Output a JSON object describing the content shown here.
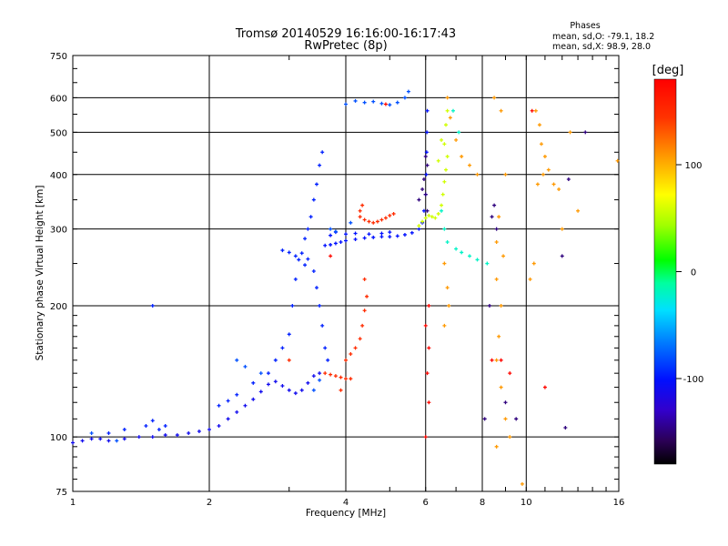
{
  "chart_data": {
    "type": "scatter",
    "title": "Tromsø 20140529 16:16:00-16:17:43",
    "subtitle": "RwPretec (8p)",
    "stats": {
      "heading": "Phases",
      "line_o": "mean, sd,O: -79.1, 18.2",
      "line_x": "mean, sd,X:  98.9, 28.0"
    },
    "xlabel": "Frequency [MHz]",
    "ylabel": "Stationary phase Virtual Height [km]",
    "x_scale": "log",
    "y_scale": "log",
    "xlim": [
      1,
      16
    ],
    "ylim": [
      75,
      750
    ],
    "x_ticks": [
      {
        "v": 1,
        "label": "1"
      },
      {
        "v": 2,
        "label": "2"
      },
      {
        "v": 4,
        "label": "4"
      },
      {
        "v": 6,
        "label": "6"
      },
      {
        "v": 8,
        "label": "8"
      },
      {
        "v": 10,
        "label": "10"
      },
      {
        "v": 16,
        "label": "16"
      }
    ],
    "y_ticks": [
      {
        "v": 75,
        "label": "75"
      },
      {
        "v": 100,
        "label": "100"
      },
      {
        "v": 200,
        "label": "200"
      },
      {
        "v": 300,
        "label": "300"
      },
      {
        "v": 400,
        "label": "400"
      },
      {
        "v": 500,
        "label": "500"
      },
      {
        "v": 600,
        "label": "600"
      },
      {
        "v": 750,
        "label": "750"
      }
    ],
    "grid": true,
    "colorbar": {
      "unit": "[deg]",
      "range": [
        -180,
        180
      ],
      "ticks": [
        {
          "v": 100,
          "label": "100"
        },
        {
          "v": 0,
          "label": "0"
        },
        {
          "v": -100,
          "label": "-100"
        }
      ]
    },
    "series": [
      {
        "phase": -110,
        "points": [
          [
            1.0,
            97
          ],
          [
            1.05,
            98
          ],
          [
            1.1,
            99
          ],
          [
            1.15,
            99
          ],
          [
            1.2,
            98
          ],
          [
            1.3,
            99
          ],
          [
            1.4,
            100
          ],
          [
            1.5,
            100
          ],
          [
            1.6,
            101
          ],
          [
            1.7,
            101
          ],
          [
            1.8,
            102
          ],
          [
            1.9,
            103
          ],
          [
            2.0,
            104
          ],
          [
            2.1,
            106
          ],
          [
            2.2,
            110
          ],
          [
            2.3,
            114
          ],
          [
            2.4,
            118
          ],
          [
            2.5,
            122
          ],
          [
            2.6,
            127
          ],
          [
            2.7,
            132
          ],
          [
            2.8,
            134
          ],
          [
            2.9,
            131
          ],
          [
            3.0,
            128
          ],
          [
            3.1,
            126
          ],
          [
            3.2,
            128
          ],
          [
            3.3,
            133
          ],
          [
            3.4,
            138
          ],
          [
            3.5,
            140
          ]
        ]
      },
      {
        "phase": -95,
        "points": [
          [
            1.2,
            102
          ],
          [
            1.3,
            104
          ],
          [
            1.45,
            106
          ],
          [
            1.5,
            109
          ],
          [
            1.55,
            104
          ],
          [
            1.6,
            106
          ],
          [
            2.1,
            118
          ],
          [
            2.2,
            121
          ],
          [
            2.3,
            125
          ],
          [
            2.5,
            133
          ],
          [
            2.7,
            140
          ],
          [
            2.8,
            150
          ],
          [
            2.9,
            160
          ],
          [
            3.0,
            172
          ],
          [
            3.05,
            200
          ],
          [
            3.1,
            230
          ],
          [
            3.15,
            255
          ],
          [
            3.2,
            264
          ],
          [
            3.3,
            256
          ],
          [
            3.4,
            240
          ],
          [
            3.45,
            220
          ],
          [
            3.5,
            200
          ],
          [
            3.55,
            180
          ],
          [
            3.6,
            160
          ],
          [
            3.65,
            150
          ],
          [
            3.55,
            450
          ],
          [
            3.5,
            420
          ],
          [
            3.45,
            380
          ],
          [
            3.4,
            350
          ],
          [
            3.35,
            320
          ],
          [
            3.3,
            300
          ],
          [
            3.25,
            285
          ],
          [
            1.5,
            200
          ],
          [
            2.9,
            268
          ],
          [
            3.0,
            265
          ],
          [
            3.1,
            260
          ],
          [
            3.25,
            248
          ]
        ]
      },
      {
        "phase": -100,
        "points": [
          [
            3.6,
            275
          ],
          [
            3.7,
            276
          ],
          [
            3.8,
            278
          ],
          [
            3.9,
            280
          ],
          [
            4.0,
            282
          ],
          [
            4.2,
            284
          ],
          [
            4.4,
            286
          ],
          [
            4.6,
            287
          ],
          [
            4.8,
            288
          ],
          [
            5.0,
            288
          ],
          [
            5.2,
            289
          ],
          [
            5.4,
            291
          ],
          [
            5.6,
            294
          ],
          [
            5.8,
            300
          ],
          [
            5.9,
            310
          ],
          [
            5.95,
            330
          ],
          [
            6.0,
            360
          ],
          [
            6.02,
            400
          ],
          [
            6.03,
            450
          ],
          [
            6.04,
            500
          ],
          [
            6.05,
            560
          ],
          [
            3.7,
            290
          ],
          [
            3.8,
            295
          ],
          [
            4.0,
            292
          ],
          [
            4.2,
            293
          ],
          [
            4.5,
            292
          ],
          [
            4.8,
            293
          ],
          [
            5.0,
            295
          ]
        ]
      },
      {
        "phase": -80,
        "points": [
          [
            4.0,
            580
          ],
          [
            4.2,
            590
          ],
          [
            4.4,
            585
          ],
          [
            4.6,
            588
          ],
          [
            4.8,
            582
          ],
          [
            5.0,
            578
          ],
          [
            5.2,
            585
          ],
          [
            5.4,
            600
          ],
          [
            5.5,
            620
          ],
          [
            2.3,
            150
          ],
          [
            2.4,
            145
          ],
          [
            2.6,
            140
          ],
          [
            3.4,
            128
          ],
          [
            3.5,
            135
          ],
          [
            3.7,
            300
          ],
          [
            3.8,
            296
          ],
          [
            1.1,
            102
          ],
          [
            1.25,
            98
          ],
          [
            4.1,
            310
          ]
        ]
      },
      {
        "phase": 150,
        "points": [
          [
            3.6,
            140
          ],
          [
            3.7,
            139
          ],
          [
            3.8,
            138
          ],
          [
            3.9,
            137
          ],
          [
            4.0,
            136
          ],
          [
            4.1,
            136
          ],
          [
            4.0,
            150
          ],
          [
            4.1,
            155
          ],
          [
            4.2,
            160
          ],
          [
            4.3,
            168
          ],
          [
            4.35,
            180
          ],
          [
            4.4,
            195
          ],
          [
            4.45,
            210
          ],
          [
            4.4,
            230
          ],
          [
            4.3,
            320
          ],
          [
            4.4,
            315
          ],
          [
            4.5,
            312
          ],
          [
            4.6,
            310
          ],
          [
            4.7,
            312
          ],
          [
            4.8,
            315
          ],
          [
            4.9,
            318
          ],
          [
            5.0,
            322
          ],
          [
            5.1,
            325
          ],
          [
            4.3,
            330
          ],
          [
            4.35,
            340
          ],
          [
            3.9,
            128
          ],
          [
            3.0,
            150
          ]
        ]
      },
      {
        "phase": 60,
        "points": [
          [
            5.8,
            305
          ],
          [
            5.9,
            312
          ],
          [
            6.0,
            318
          ],
          [
            6.1,
            322
          ],
          [
            6.2,
            320
          ],
          [
            6.3,
            318
          ],
          [
            6.4,
            325
          ],
          [
            6.5,
            340
          ],
          [
            6.55,
            360
          ],
          [
            6.6,
            385
          ],
          [
            6.65,
            410
          ],
          [
            6.7,
            440
          ],
          [
            6.6,
            470
          ],
          [
            6.65,
            520
          ],
          [
            6.7,
            560
          ],
          [
            6.5,
            480
          ],
          [
            6.4,
            430
          ]
        ]
      },
      {
        "phase": 110,
        "points": [
          [
            6.7,
            600
          ],
          [
            6.8,
            540
          ],
          [
            7.0,
            480
          ],
          [
            7.2,
            440
          ],
          [
            7.5,
            420
          ],
          [
            7.8,
            400
          ],
          [
            6.6,
            250
          ],
          [
            6.7,
            220
          ],
          [
            6.75,
            200
          ],
          [
            6.6,
            180
          ],
          [
            8.5,
            600
          ],
          [
            8.8,
            560
          ],
          [
            9.0,
            400
          ],
          [
            8.7,
            320
          ],
          [
            8.6,
            280
          ],
          [
            8.9,
            260
          ],
          [
            8.6,
            230
          ],
          [
            8.8,
            200
          ],
          [
            8.7,
            170
          ],
          [
            8.6,
            150
          ],
          [
            8.8,
            130
          ],
          [
            9.0,
            110
          ],
          [
            9.2,
            100
          ],
          [
            10.5,
            560
          ],
          [
            10.7,
            520
          ],
          [
            10.8,
            470
          ],
          [
            11.0,
            440
          ],
          [
            11.2,
            410
          ],
          [
            10.9,
            400
          ],
          [
            10.6,
            380
          ],
          [
            11.5,
            380
          ],
          [
            11.8,
            370
          ],
          [
            12.0,
            300
          ],
          [
            10.4,
            250
          ],
          [
            10.2,
            230
          ],
          [
            8.6,
            95
          ],
          [
            9.8,
            78
          ],
          [
            12.5,
            500
          ],
          [
            15.9,
            430
          ],
          [
            13.0,
            330
          ]
        ]
      },
      {
        "phase": -20,
        "points": [
          [
            6.5,
            330
          ],
          [
            6.6,
            300
          ],
          [
            6.7,
            280
          ],
          [
            7.0,
            270
          ],
          [
            7.2,
            265
          ],
          [
            7.5,
            260
          ],
          [
            7.8,
            255
          ],
          [
            8.2,
            250
          ],
          [
            6.9,
            560
          ],
          [
            7.1,
            500
          ]
        ]
      },
      {
        "phase": 175,
        "points": [
          [
            6.1,
            200
          ],
          [
            6.0,
            180
          ],
          [
            6.1,
            160
          ],
          [
            6.05,
            140
          ],
          [
            6.1,
            120
          ],
          [
            6.0,
            100
          ],
          [
            8.8,
            150
          ],
          [
            9.2,
            140
          ],
          [
            11.0,
            130
          ],
          [
            8.4,
            150
          ],
          [
            4.9,
            580
          ],
          [
            3.7,
            260
          ],
          [
            10.3,
            560
          ]
        ]
      },
      {
        "phase": -150,
        "points": [
          [
            6.0,
            440
          ],
          [
            6.05,
            420
          ],
          [
            5.95,
            390
          ],
          [
            6.0,
            360
          ],
          [
            6.05,
            330
          ],
          [
            5.8,
            350
          ],
          [
            5.9,
            370
          ],
          [
            8.1,
            110
          ],
          [
            8.3,
            200
          ],
          [
            8.5,
            340
          ],
          [
            9.0,
            120
          ],
          [
            9.5,
            110
          ],
          [
            8.4,
            320
          ],
          [
            8.6,
            300
          ],
          [
            12.2,
            105
          ],
          [
            12.0,
            260
          ],
          [
            12.4,
            390
          ],
          [
            13.5,
            500
          ]
        ]
      }
    ]
  }
}
